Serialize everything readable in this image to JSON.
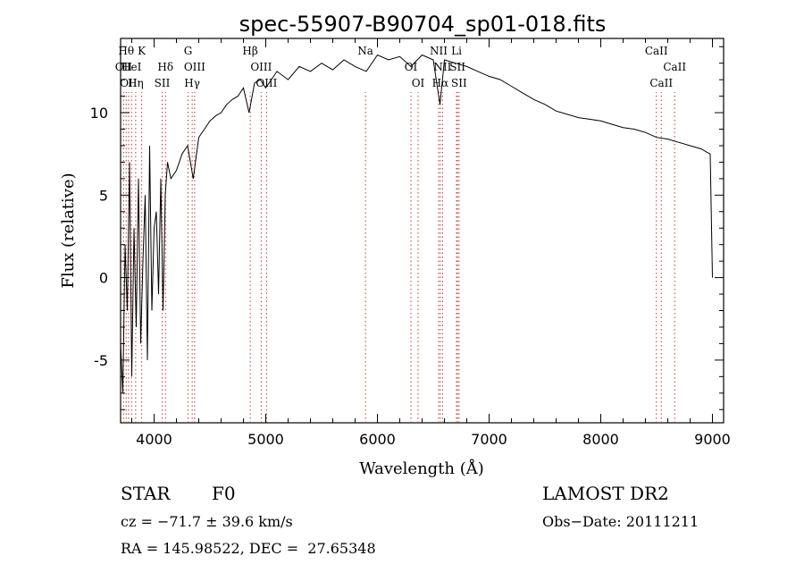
{
  "chart_data": {
    "type": "line",
    "title": "spec-55907-B90704_sp01-018.fits",
    "xlabel": "Wavelength (Å)",
    "ylabel": "Flux (relative)",
    "xlim": [
      3700,
      9100
    ],
    "ylim": [
      -8.8,
      14.5
    ],
    "x_ticks": [
      4000,
      5000,
      6000,
      7000,
      8000,
      9000
    ],
    "y_ticks": [
      -5,
      0,
      5,
      10
    ],
    "grid": false,
    "line_color": "#000000",
    "marker_color": "#cc3333",
    "series": [
      {
        "x": [
          3700,
          3720,
          3740,
          3760,
          3780,
          3800,
          3820,
          3840,
          3860,
          3880,
          3900,
          3920,
          3940,
          3960,
          3980,
          4000,
          4020,
          4040,
          4060,
          4080,
          4100,
          4120,
          4150,
          4200,
          4250,
          4300,
          4350,
          4400,
          4450,
          4500,
          4550,
          4600,
          4650,
          4700,
          4750,
          4800,
          4850,
          4900,
          4950,
          5000,
          5100,
          5200,
          5300,
          5400,
          5500,
          5600,
          5700,
          5800,
          5900,
          6000,
          6100,
          6200,
          6300,
          6400,
          6500,
          6560,
          6600,
          6700,
          6800,
          6900,
          7000,
          7100,
          7200,
          7300,
          7400,
          7500,
          7600,
          7700,
          7800,
          7900,
          8000,
          8100,
          8200,
          8300,
          8400,
          8500,
          8600,
          8700,
          8800,
          8900,
          8950,
          8980,
          9000
        ],
        "y": [
          -4,
          -7,
          2,
          -2,
          7,
          -6,
          3,
          -3,
          6,
          -4,
          1,
          5,
          -5,
          8,
          -2,
          3,
          4,
          -1,
          6,
          -2,
          5,
          7,
          6,
          6.5,
          7.5,
          8,
          6,
          8.5,
          9,
          9.5,
          9.8,
          10,
          10.5,
          10.8,
          11,
          11.5,
          10,
          11.8,
          12,
          11.5,
          12.5,
          12,
          12.8,
          12.5,
          13,
          12.6,
          13.2,
          12.8,
          12.5,
          13.5,
          13.2,
          13.4,
          12.8,
          13.5,
          13.2,
          10.5,
          13.2,
          13,
          12.8,
          12.5,
          12.2,
          12,
          11.6,
          11.2,
          10.8,
          10.5,
          10.1,
          9.9,
          9.7,
          9.6,
          9.5,
          9.3,
          9.1,
          9,
          8.8,
          8.5,
          8.4,
          8.2,
          8,
          7.8,
          7.6,
          7.5,
          0
        ]
      }
    ],
    "line_markers": [
      {
        "x": 3727,
        "label": "OII",
        "row": 2
      },
      {
        "x": 3750,
        "label": "Hθ",
        "row": 1
      },
      {
        "x": 3771,
        "label": "OII",
        "row": 3
      },
      {
        "x": 3798,
        "label": "HeI",
        "row": 2
      },
      {
        "x": 3835,
        "label": "Hη",
        "row": 3
      },
      {
        "x": 3889,
        "label": "K",
        "row": 1
      },
      {
        "x": 4102,
        "label": "Hδ",
        "row": 2
      },
      {
        "x": 4072,
        "label": "SII",
        "row": 3
      },
      {
        "x": 4304,
        "label": "G",
        "row": 1
      },
      {
        "x": 4363,
        "label": "OIII",
        "row": 2
      },
      {
        "x": 4341,
        "label": "Hγ",
        "row": 3
      },
      {
        "x": 4861,
        "label": "Hβ",
        "row": 1
      },
      {
        "x": 4959,
        "label": "OIII",
        "row": 2
      },
      {
        "x": 5007,
        "label": "OIII",
        "row": 3
      },
      {
        "x": 5893,
        "label": "Na",
        "row": 1
      },
      {
        "x": 6300,
        "label": "OI",
        "row": 2
      },
      {
        "x": 6364,
        "label": "OI",
        "row": 3
      },
      {
        "x": 6548,
        "label": "NII",
        "row": 1
      },
      {
        "x": 6583,
        "label": "NII",
        "row": 2
      },
      {
        "x": 6563,
        "label": "Hα",
        "row": 3
      },
      {
        "x": 6708,
        "label": "Li",
        "row": 1
      },
      {
        "x": 6717,
        "label": "SII",
        "row": 2
      },
      {
        "x": 6731,
        "label": "SII",
        "row": 3
      },
      {
        "x": 8498,
        "label": "CaII",
        "row": 1
      },
      {
        "x": 8542,
        "label": "CaII",
        "row": 3
      },
      {
        "x": 8662,
        "label": "CaII",
        "row": 2
      }
    ]
  },
  "info": {
    "object_class": "STAR",
    "subclass": "F0",
    "survey": "LAMOST DR2",
    "cz": "cz = −71.7 ± 39.6 km/s",
    "obs_date": "Obs−Date: 20111211",
    "coords": "RA = 145.98522, DEC =  27.65348"
  }
}
